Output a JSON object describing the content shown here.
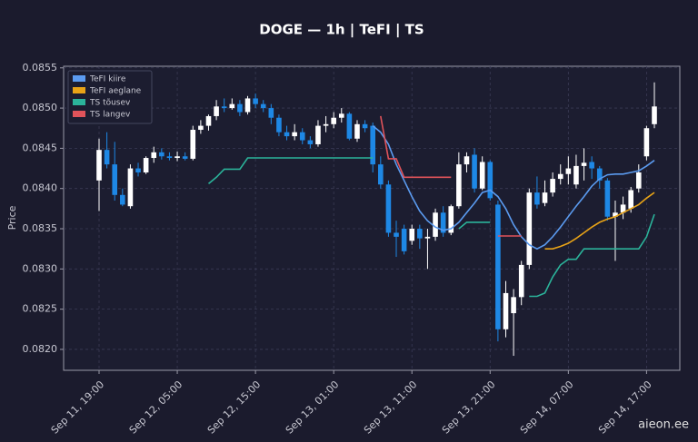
{
  "chart_data": {
    "type": "candlestick",
    "title": "DOGE — 1h  |  TeFI  |  TS",
    "y_label": "Price",
    "watermark": "aieon.ee",
    "grid": true,
    "legend": "upper left",
    "up_color": "#ffffff",
    "down_color": "#1e88e5",
    "ylim": [
      0.08174,
      0.08552
    ],
    "yticks": [
      {
        "value": 0.082,
        "label": "0.0820"
      },
      0.0825,
      {
        "value": 0.083,
        "label": "0.0830"
      },
      0.0835,
      {
        "value": 0.084,
        "label": "0.0840"
      },
      0.0845,
      {
        "value": 0.085,
        "label": "0.0850"
      },
      0.0855
    ],
    "categories": [
      "Sep 11, 19:00",
      null,
      null,
      null,
      null,
      null,
      null,
      null,
      null,
      null,
      "Sep 12, 05:00",
      null,
      null,
      null,
      null,
      null,
      null,
      null,
      null,
      null,
      "Sep 12, 15:00",
      null,
      null,
      null,
      null,
      null,
      null,
      null,
      null,
      null,
      "Sep 13, 01:00",
      null,
      null,
      null,
      null,
      null,
      null,
      null,
      null,
      null,
      "Sep 13, 11:00",
      null,
      null,
      null,
      null,
      null,
      null,
      null,
      null,
      null,
      "Sep 13, 21:00",
      null,
      null,
      null,
      null,
      null,
      null,
      null,
      null,
      null,
      "Sep 14, 07:00",
      null,
      null,
      null,
      null,
      null,
      null,
      null,
      null,
      null,
      "Sep 14, 17:00",
      null
    ],
    "open": [
      0.0841,
      0.08448,
      0.0843,
      0.08392,
      0.08378,
      0.08425,
      0.0842,
      0.08438,
      0.08445,
      0.0844,
      0.08438,
      0.0844,
      0.08437,
      0.08473,
      0.08478,
      0.0849,
      0.08502,
      0.085,
      0.08505,
      0.08495,
      0.08512,
      0.08505,
      0.085,
      0.08488,
      0.0847,
      0.08465,
      0.0847,
      0.0846,
      0.08455,
      0.08478,
      0.0848,
      0.08488,
      0.08493,
      0.08462,
      0.0848,
      0.08478,
      0.0843,
      0.08405,
      0.08345,
      0.0835,
      0.08335,
      0.0835,
      0.08338,
      0.0834,
      0.0837,
      0.08345,
      0.08378,
      0.0843,
      0.08442,
      0.084,
      0.08433,
      0.0838,
      0.08225,
      0.08245,
      0.08265,
      0.08305,
      0.08395,
      0.08382,
      0.08395,
      0.08412,
      0.08418,
      0.08405,
      0.08428,
      0.08433,
      0.08425,
      0.0841,
      0.08365,
      0.0837,
      0.08375,
      0.084,
      0.0844,
      0.0848
    ],
    "high": [
      0.08462,
      0.0847,
      0.08458,
      0.084,
      0.0843,
      0.08432,
      0.0844,
      0.08452,
      0.0845,
      0.08445,
      0.08446,
      0.08445,
      0.08478,
      0.08485,
      0.08492,
      0.0851,
      0.08512,
      0.08512,
      0.0851,
      0.08515,
      0.08518,
      0.0851,
      0.08505,
      0.08492,
      0.08478,
      0.0848,
      0.08475,
      0.08465,
      0.08485,
      0.0849,
      0.08495,
      0.085,
      0.08495,
      0.08485,
      0.08485,
      0.08482,
      0.0844,
      0.0841,
      0.0836,
      0.08355,
      0.08355,
      0.08355,
      0.0835,
      0.08375,
      0.08378,
      0.0838,
      0.08445,
      0.08445,
      0.0845,
      0.0844,
      0.08435,
      0.08385,
      0.08285,
      0.08275,
      0.0831,
      0.084,
      0.08415,
      0.0841,
      0.0842,
      0.0843,
      0.0844,
      0.08442,
      0.0845,
      0.0844,
      0.08428,
      0.08413,
      0.08385,
      0.0839,
      0.08402,
      0.0843,
      0.08478,
      0.08532
    ],
    "low": [
      0.08372,
      0.08425,
      0.08385,
      0.08378,
      0.08375,
      0.08415,
      0.08418,
      0.08432,
      0.08436,
      0.08435,
      0.08434,
      0.08435,
      0.08435,
      0.08468,
      0.08472,
      0.08485,
      0.08495,
      0.08498,
      0.0849,
      0.08492,
      0.085,
      0.08495,
      0.0848,
      0.08465,
      0.0846,
      0.0846,
      0.08455,
      0.0845,
      0.08452,
      0.0847,
      0.08475,
      0.08482,
      0.0846,
      0.08458,
      0.0847,
      0.0842,
      0.084,
      0.0834,
      0.08315,
      0.08318,
      0.0833,
      0.08325,
      0.083,
      0.08335,
      0.0834,
      0.08342,
      0.08375,
      0.0842,
      0.08395,
      0.08398,
      0.08385,
      0.0821,
      0.08215,
      0.08192,
      0.08255,
      0.083,
      0.08375,
      0.08378,
      0.0839,
      0.08405,
      0.08405,
      0.084,
      0.0841,
      0.08412,
      0.084,
      0.0836,
      0.0831,
      0.08362,
      0.0837,
      0.08395,
      0.08435,
      0.08475
    ],
    "close": [
      0.08448,
      0.0843,
      0.08392,
      0.0838,
      0.08425,
      0.0842,
      0.08438,
      0.08445,
      0.0844,
      0.08438,
      0.0844,
      0.08437,
      0.08473,
      0.08478,
      0.0849,
      0.08502,
      0.085,
      0.08505,
      0.08495,
      0.08512,
      0.08505,
      0.085,
      0.08488,
      0.0847,
      0.08465,
      0.0847,
      0.0846,
      0.08455,
      0.08478,
      0.0848,
      0.08488,
      0.08493,
      0.08462,
      0.0848,
      0.08475,
      0.0843,
      0.08405,
      0.08345,
      0.0834,
      0.08322,
      0.0835,
      0.08338,
      0.0834,
      0.0837,
      0.08345,
      0.08378,
      0.0843,
      0.0844,
      0.084,
      0.08433,
      0.08388,
      0.08225,
      0.0827,
      0.08265,
      0.08305,
      0.08395,
      0.0838,
      0.08395,
      0.08412,
      0.08418,
      0.08425,
      0.08428,
      0.08432,
      0.08425,
      0.0841,
      0.08365,
      0.0837,
      0.0838,
      0.08398,
      0.0842,
      0.08475,
      0.08502
    ],
    "series": [
      {
        "name": "TeFI kiire",
        "color": "#5b9bf0",
        "values": [
          null,
          null,
          null,
          null,
          null,
          null,
          null,
          null,
          null,
          null,
          null,
          null,
          null,
          null,
          null,
          null,
          null,
          null,
          null,
          null,
          null,
          null,
          null,
          null,
          null,
          null,
          null,
          null,
          null,
          null,
          null,
          null,
          null,
          null,
          null,
          0.08478,
          0.0847,
          0.08455,
          0.0843,
          0.0841,
          0.0839,
          0.08372,
          0.0836,
          0.08352,
          0.08348,
          0.0835,
          0.08358,
          0.0837,
          0.08382,
          0.08395,
          0.08398,
          0.0839,
          0.08375,
          0.08355,
          0.0834,
          0.0833,
          0.08325,
          0.0833,
          0.0834,
          0.08352,
          0.08365,
          0.08378,
          0.0839,
          0.08403,
          0.08412,
          0.08417,
          0.08418,
          0.08418,
          0.0842,
          0.08422,
          0.08428,
          0.08435
        ]
      },
      {
        "name": "TeFI aeglane",
        "color": "#e8a317",
        "values": [
          null,
          null,
          null,
          null,
          null,
          null,
          null,
          null,
          null,
          null,
          null,
          null,
          null,
          null,
          null,
          null,
          null,
          null,
          null,
          null,
          null,
          null,
          null,
          null,
          null,
          null,
          null,
          null,
          null,
          null,
          null,
          null,
          null,
          null,
          null,
          null,
          null,
          null,
          null,
          null,
          null,
          null,
          null,
          null,
          null,
          null,
          null,
          null,
          null,
          null,
          null,
          null,
          null,
          null,
          null,
          null,
          null,
          0.08325,
          0.08325,
          0.08328,
          0.08332,
          0.08338,
          0.08345,
          0.08352,
          0.08358,
          0.08362,
          0.08365,
          0.0837,
          0.08375,
          0.0838,
          0.08388,
          0.08395
        ]
      },
      {
        "name": "TS tõusev",
        "color": "#2bb39a",
        "values": [
          null,
          null,
          null,
          null,
          null,
          null,
          null,
          null,
          null,
          null,
          null,
          null,
          null,
          null,
          0.08406,
          0.08414,
          0.08424,
          0.08424,
          0.08424,
          0.08438,
          0.08438,
          0.08438,
          0.08438,
          0.08438,
          0.08438,
          0.08438,
          0.08438,
          0.08438,
          0.08438,
          0.08438,
          0.08438,
          0.08438,
          0.08438,
          0.08438,
          0.08438,
          0.08438,
          null,
          null,
          null,
          null,
          null,
          null,
          null,
          null,
          null,
          null,
          0.0835,
          0.08358,
          0.08358,
          0.08358,
          0.08358,
          null,
          null,
          null,
          null,
          0.08266,
          0.08266,
          0.0827,
          0.0829,
          0.08305,
          0.08312,
          0.08312,
          0.08325,
          0.08325,
          0.08325,
          0.08325,
          0.08325,
          0.08325,
          0.08325,
          0.08325,
          0.0834,
          0.08368
        ]
      },
      {
        "name": "TS langev",
        "color": "#e0535a",
        "values": [
          null,
          null,
          null,
          null,
          null,
          null,
          null,
          null,
          null,
          null,
          null,
          null,
          null,
          null,
          null,
          null,
          null,
          null,
          null,
          null,
          null,
          null,
          null,
          null,
          null,
          null,
          null,
          null,
          null,
          null,
          null,
          null,
          null,
          null,
          null,
          null,
          0.0849,
          0.08437,
          0.08437,
          0.08414,
          0.08414,
          0.08414,
          0.08414,
          0.08414,
          0.08414,
          0.08414,
          null,
          null,
          null,
          null,
          null,
          0.08341,
          0.08341,
          0.08341,
          0.08341,
          null,
          null,
          null,
          null,
          null,
          null,
          null,
          null,
          null,
          null,
          null,
          null,
          null,
          null,
          null,
          null,
          null
        ]
      }
    ]
  }
}
